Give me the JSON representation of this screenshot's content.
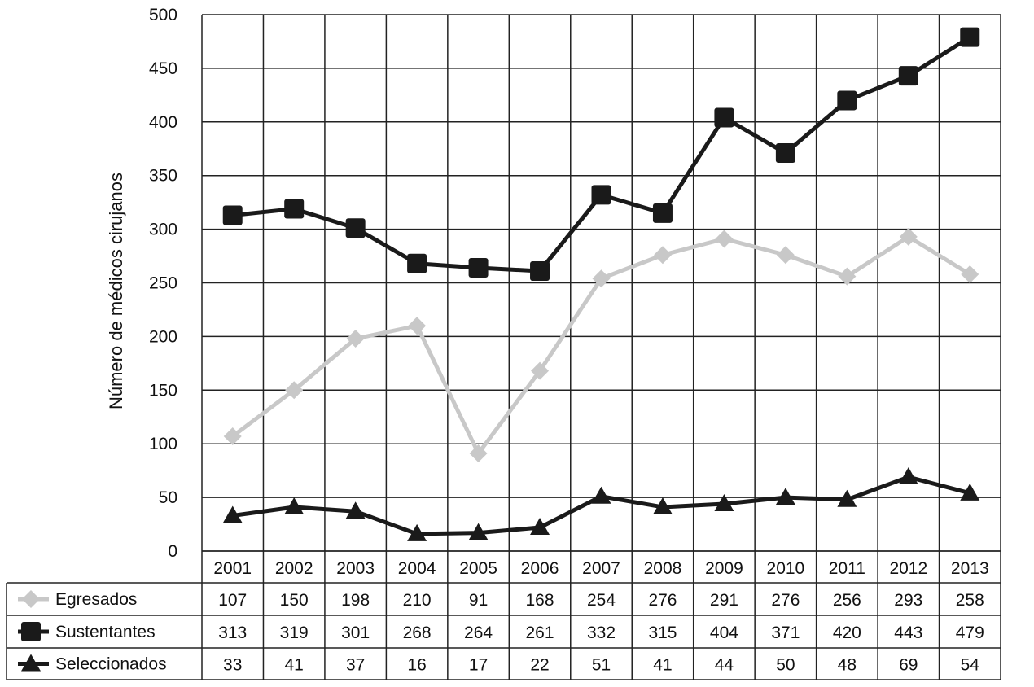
{
  "chart_data": {
    "type": "line",
    "ylabel": "Número de médicos cirujanos",
    "ylim": [
      0,
      500
    ],
    "yticks": [
      "0",
      "50",
      "100",
      "150",
      "200",
      "250",
      "300",
      "350",
      "400",
      "450",
      "500"
    ],
    "x": [
      "2001",
      "2002",
      "2003",
      "2004",
      "2005",
      "2006",
      "2007",
      "2008",
      "2009",
      "2010",
      "2011",
      "2012",
      "2013"
    ],
    "grid": true,
    "legend": "data-table-below",
    "series": [
      {
        "name": "Egresados",
        "marker": "diamond",
        "color": "#c8c8c8",
        "values": [
          107,
          150,
          198,
          210,
          91,
          168,
          254,
          276,
          291,
          276,
          256,
          293,
          258
        ]
      },
      {
        "name": "Sustentantes",
        "marker": "square",
        "color": "#1a1a1a",
        "values": [
          313,
          319,
          301,
          268,
          264,
          261,
          332,
          315,
          404,
          371,
          420,
          443,
          479
        ]
      },
      {
        "name": "Seleccionados",
        "marker": "triangle",
        "color": "#1a1a1a",
        "values": [
          33,
          41,
          37,
          16,
          17,
          22,
          51,
          41,
          44,
          50,
          48,
          69,
          54
        ]
      }
    ]
  }
}
